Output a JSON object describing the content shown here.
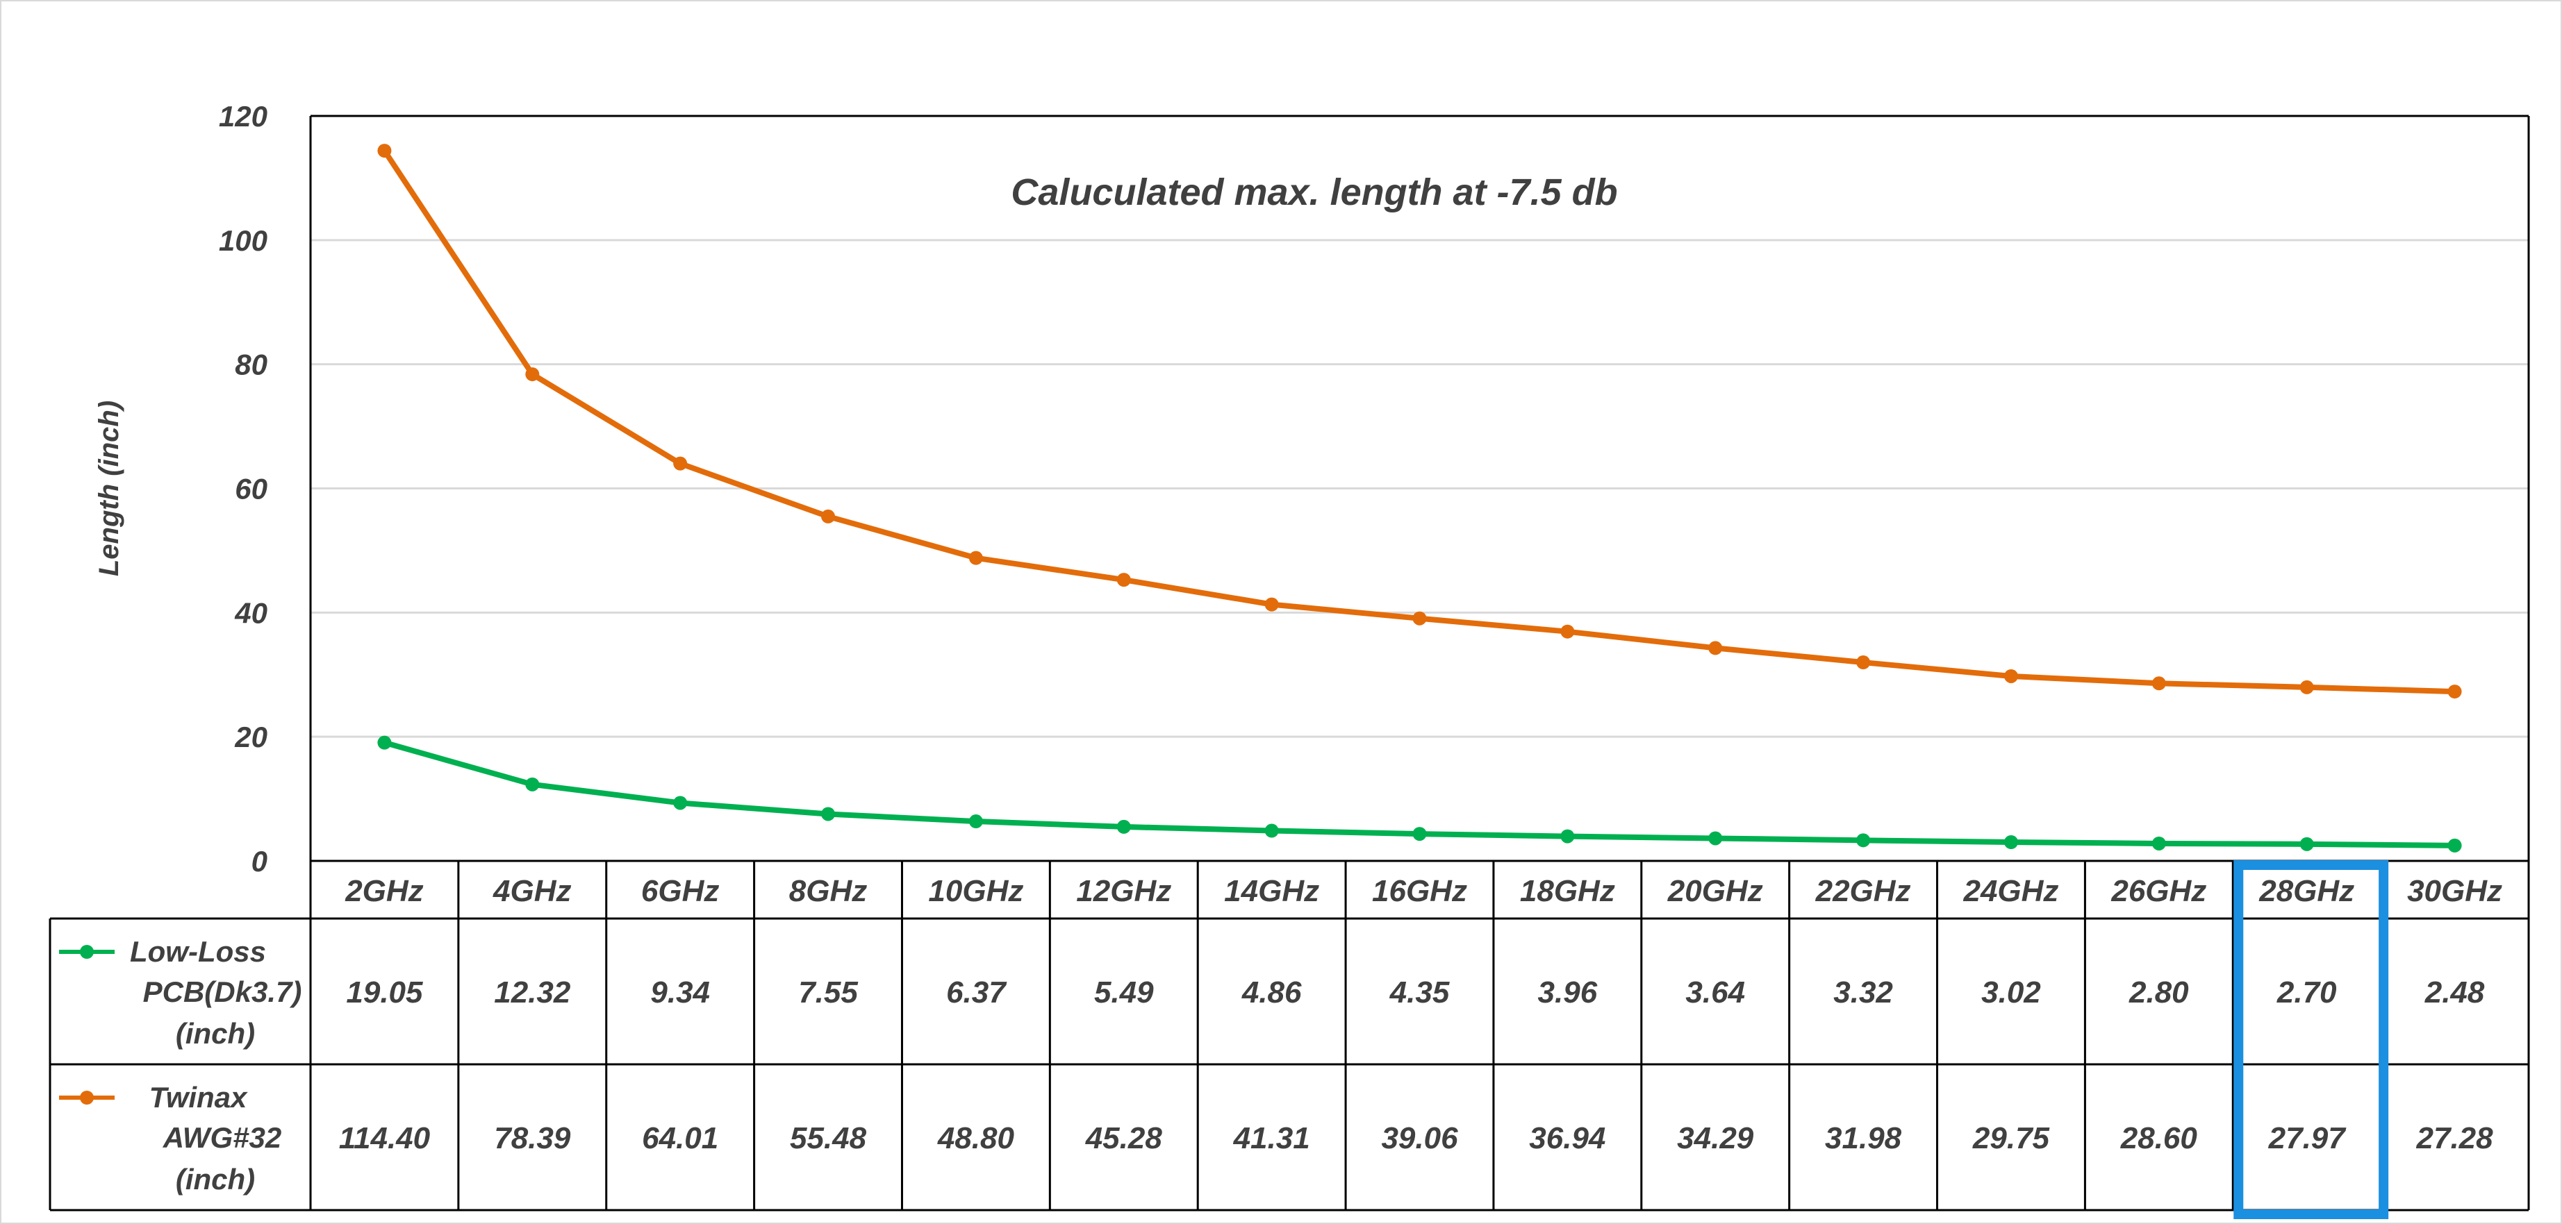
{
  "chart_data": {
    "type": "line",
    "title": "Caluculated max. length at -7.5 db",
    "xlabel": "",
    "ylabel": "Length (inch)",
    "ylim": [
      0,
      120
    ],
    "yticks": [
      0,
      20,
      40,
      60,
      80,
      100,
      120
    ],
    "grid": true,
    "categories": [
      "2GHz",
      "4GHz",
      "6GHz",
      "8GHz",
      "10GHz",
      "12GHz",
      "14GHz",
      "16GHz",
      "18GHz",
      "20GHz",
      "22GHz",
      "24GHz",
      "26GHz",
      "28GHz",
      "30GHz"
    ],
    "series": [
      {
        "name": "Low-Loss PCB(Dk3.7) (inch)",
        "legend_lines": [
          "Low-Loss",
          "PCB(Dk3.7)",
          "(inch)"
        ],
        "color": "#00b050",
        "values": [
          19.05,
          12.32,
          9.34,
          7.55,
          6.37,
          5.49,
          4.86,
          4.35,
          3.96,
          3.64,
          3.32,
          3.02,
          2.8,
          2.7,
          2.48
        ],
        "labels": [
          "19.05",
          "12.32",
          "9.34",
          "7.55",
          "6.37",
          "5.49",
          "4.86",
          "4.35",
          "3.96",
          "3.64",
          "3.32",
          "3.02",
          "2.80",
          "2.70",
          "2.48"
        ]
      },
      {
        "name": "Twinax AWG#32 (inch)",
        "legend_lines": [
          "Twinax",
          "AWG#32",
          "(inch)"
        ],
        "color": "#e36c0a",
        "values": [
          114.4,
          78.39,
          64.01,
          55.48,
          48.8,
          45.28,
          41.31,
          39.06,
          36.94,
          34.29,
          31.98,
          29.75,
          28.6,
          27.97,
          27.28
        ],
        "labels": [
          "114.40",
          "78.39",
          "64.01",
          "55.48",
          "48.80",
          "45.28",
          "41.31",
          "39.06",
          "36.94",
          "34.29",
          "31.98",
          "29.75",
          "28.60",
          "27.97",
          "27.28"
        ]
      }
    ],
    "highlight": {
      "category": "28GHz",
      "color": "#1b8fe0"
    }
  }
}
